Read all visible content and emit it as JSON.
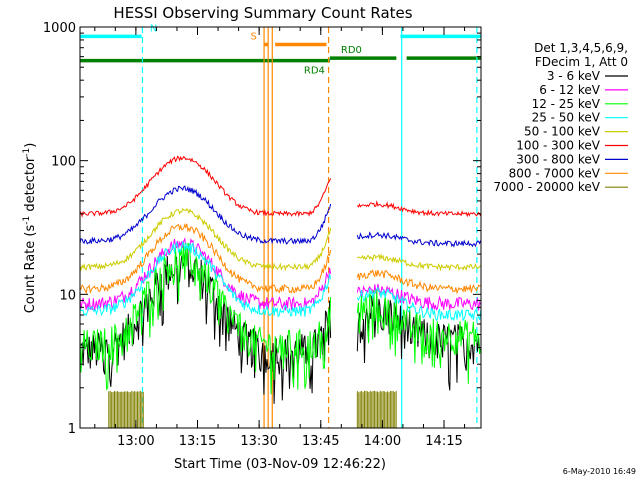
{
  "chart_data": {
    "type": "line",
    "title": "HESSI Observing Summary Count Rates",
    "xlabel": "Start Time (03-Nov-09 12:46:22)",
    "ylabel_parts": [
      "Count Rate (s",
      "-1",
      " detector",
      "-1",
      ")"
    ],
    "y_scale": "log",
    "ylim": [
      1,
      1000
    ],
    "x_start_minutes": 0,
    "x_end_minutes": 97.6,
    "x_ticks": [
      {
        "m": 13.6,
        "label": "13:00"
      },
      {
        "m": 28.6,
        "label": "13:15"
      },
      {
        "m": 43.6,
        "label": "13:30"
      },
      {
        "m": 58.6,
        "label": "13:45"
      },
      {
        "m": 73.6,
        "label": "14:00"
      },
      {
        "m": 88.6,
        "label": "14:15"
      }
    ],
    "y_ticks": [
      {
        "v": 1,
        "label": "1"
      },
      {
        "v": 10,
        "label": "10"
      },
      {
        "v": 100,
        "label": "100"
      },
      {
        "v": 1000,
        "label": "1000"
      }
    ],
    "legend_header": [
      "Det 1,3,4,5,6,9,",
      "FDecim 1, Att 0"
    ],
    "series": [
      {
        "name": "3 - 6 keV",
        "color": "#000000",
        "base": 3.8,
        "peak": 17,
        "gap_end": 82,
        "noise": 0.35,
        "end": 4.5
      },
      {
        "name": "6 - 12 keV",
        "color": "#ff00ff",
        "base": 8.5,
        "peak": 24,
        "gap_end": 83,
        "noise": 0.12,
        "end": 8.5
      },
      {
        "name": "12 - 25 keV",
        "color": "#00ff00",
        "base": 4.2,
        "peak": 19,
        "gap_end": 85,
        "noise": 0.3,
        "end": 5.0
      },
      {
        "name": "25 - 50 keV",
        "color": "#00ffff",
        "base": 7.5,
        "peak": 23,
        "gap_end": 82,
        "noise": 0.1,
        "end": 7.0
      },
      {
        "name": "50 - 100 keV",
        "color": "#cccc00",
        "base": 16,
        "peak": 42,
        "gap_end": 80,
        "noise": 0.05,
        "end": 16
      },
      {
        "name": "100 - 300 keV",
        "color": "#ff0000",
        "base": 40,
        "peak": 105,
        "gap_end": 78,
        "noise": 0.04,
        "end": 40
      },
      {
        "name": "300 - 800 keV",
        "color": "#0000cc",
        "base": 25,
        "peak": 62,
        "gap_end": 78,
        "noise": 0.05,
        "end": 24
      },
      {
        "name": "800 - 7000 keV",
        "color": "#ff8800",
        "base": 11,
        "peak": 32,
        "gap_end": 80,
        "noise": 0.07,
        "end": 11
      },
      {
        "name": "7000 - 20000 keV",
        "color": "#808000",
        "base": 1.3,
        "peak": 1.9,
        "gap_end": 0,
        "noise": 0,
        "end": 1.3
      }
    ],
    "state_bars": [
      {
        "label": "N",
        "color": "#00ffff",
        "segments": [
          [
            0,
            15
          ],
          [
            78,
            97.6
          ]
        ],
        "level": 850,
        "label_at": 17
      },
      {
        "label": "S",
        "color": "#ff8800",
        "segments": [
          [
            44.8,
            45.8
          ],
          [
            47.5,
            60
          ]
        ],
        "level": 740,
        "label_at": 41.5
      },
      {
        "label": "RD0",
        "color": "#008000",
        "segments": [
          [
            60.8,
            77
          ],
          [
            79.5,
            97.6
          ]
        ],
        "level": 585,
        "label_at": 63.5
      },
      {
        "label": "RD4",
        "color": "#008000",
        "segments": [
          [
            0,
            60.8
          ]
        ],
        "level": 560,
        "label_at": 54.5
      }
    ],
    "vlines": [
      {
        "m": 15.2,
        "color": "#00ffff",
        "dash": true
      },
      {
        "m": 44.8,
        "color": "#ff8800",
        "dash": false
      },
      {
        "m": 45.8,
        "color": "#ff8800",
        "dash": false
      },
      {
        "m": 46.8,
        "color": "#ff8800",
        "dash": false
      },
      {
        "m": 60.5,
        "color": "#ff8800",
        "dash": true
      },
      {
        "m": 78.3,
        "color": "#00ffff",
        "dash": false
      },
      {
        "m": 96.6,
        "color": "#00ffff",
        "dash": true
      }
    ],
    "gap": [
      61.2,
      67.3
    ],
    "flare_center": 25,
    "footer_date": "6-May-2010 16:49"
  }
}
